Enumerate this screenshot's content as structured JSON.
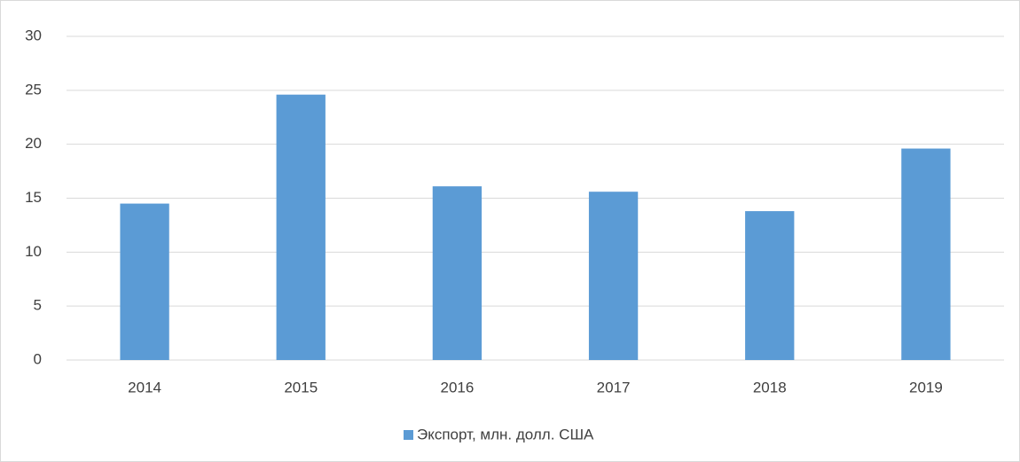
{
  "chart_data": {
    "type": "bar",
    "categories": [
      "2014",
      "2015",
      "2016",
      "2017",
      "2018",
      "2019"
    ],
    "series": [
      {
        "name": "Экспорт, млн. долл. США",
        "color": "#5b9bd5",
        "values": [
          14.5,
          24.6,
          16.1,
          15.6,
          13.8,
          19.6
        ]
      }
    ],
    "ylim": [
      0,
      30
    ],
    "yticks": [
      0,
      5,
      10,
      15,
      20,
      25,
      30
    ],
    "grid": true,
    "legend": "bottom"
  }
}
